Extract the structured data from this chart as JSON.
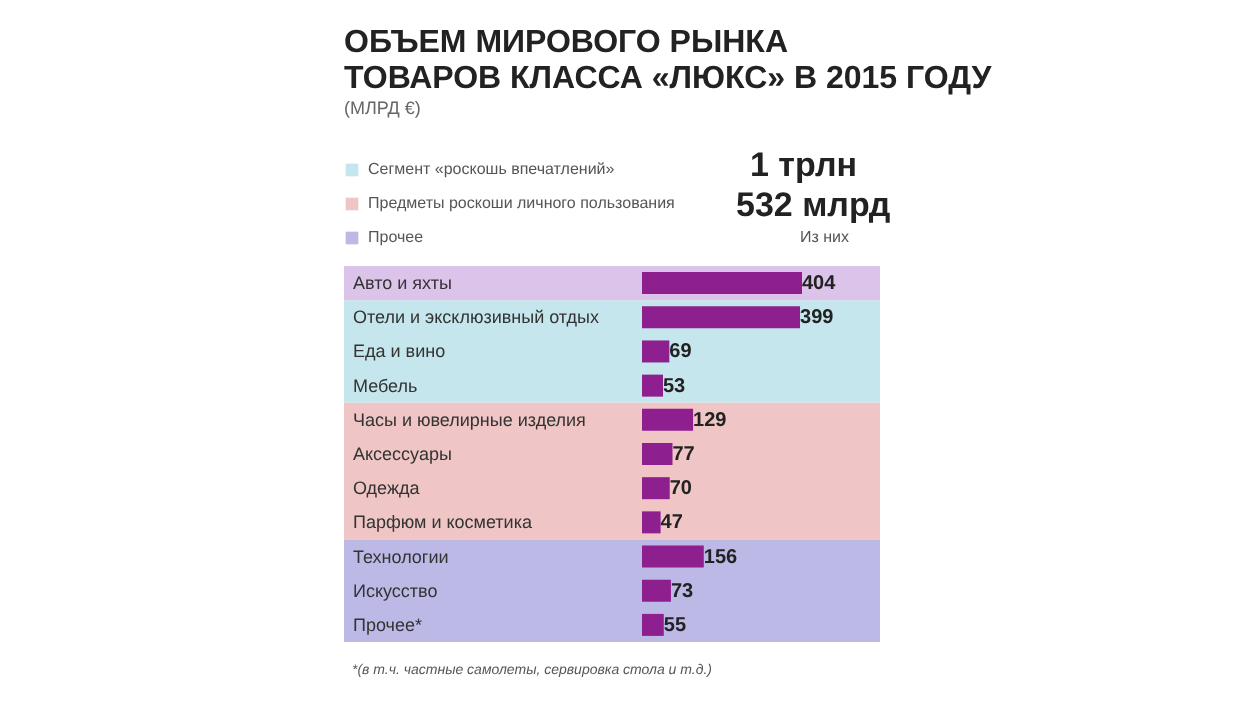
{
  "chart_data": {
    "type": "bar",
    "orientation": "horizontal",
    "title": [
      "ОБЪЕМ МИРОВОГО РЫНКА",
      "ТОВАРОВ КЛАССА «ЛЮКС» В 2015 ГОДУ"
    ],
    "subtitle": "(МЛРД €)",
    "categories": [
      "Авто и яхты",
      "Отели и эксклюзивный отдых",
      "Еда и вино",
      "Мебель",
      "Часы и ювелирные изделия",
      "Аксессуары",
      "Одежда",
      "Парфюм и косметика",
      "Технологии",
      "Искусство",
      "Прочее*"
    ],
    "values": [
      404,
      399,
      69,
      53,
      129,
      77,
      70,
      47,
      156,
      73,
      55
    ],
    "color": "#8e1f8e",
    "data_labels": true,
    "legend": "top left",
    "bands": [
      {
        "axis": "y",
        "from": "Авто и яхты",
        "to": "Авто и яхты",
        "color": "#dcc3ea"
      },
      {
        "axis": "y",
        "from": "Отели и эксклюзивный отдых",
        "to": "Мебель",
        "label": "Сегмент «роскошь впечатлений»",
        "color": "#c4e6ec"
      },
      {
        "axis": "y",
        "from": "Часы и ювелирные изделия",
        "to": "Парфюм и косметика",
        "label": "Предметы роскоши личного пользования",
        "color": "#efc5c5"
      },
      {
        "axis": "y",
        "from": "Технологии",
        "to": "Прочее*",
        "label": "Прочее",
        "color": "#bdb9e6"
      }
    ],
    "annotations": [
      "1 трлн",
      "532 млрд",
      "Из них",
      "*(в т.ч. частные самолеты, сервировка стола и т.д.)"
    ]
  }
}
